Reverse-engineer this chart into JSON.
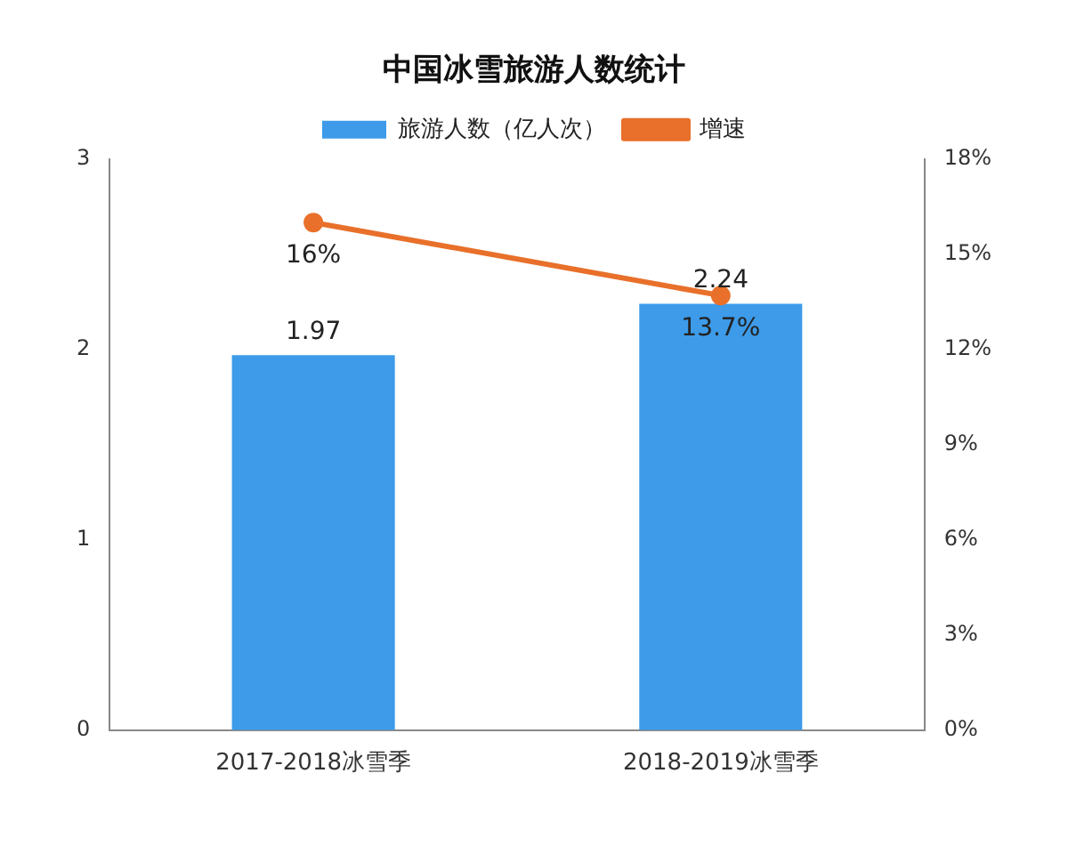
{
  "chart_data": {
    "type": "bar",
    "title": "中国冰雪旅游人数统计",
    "categories": [
      "2017-2018冰雪季",
      "2018-2019冰雪季"
    ],
    "series": [
      {
        "name": "旅游人数（亿人次）",
        "color": "#3d9be9",
        "values": [
          1.97,
          2.24
        ],
        "value_labels": [
          "1.97",
          "2.24"
        ]
      },
      {
        "name": "增速",
        "type": "line",
        "axis": "y2",
        "color": "#e8702a",
        "values": [
          16,
          13.7
        ],
        "value_labels": [
          "16%",
          "13.7%"
        ],
        "marker": "circle"
      }
    ],
    "ylim": [
      0,
      3
    ],
    "yticks": [
      0,
      1,
      2,
      3
    ],
    "y2lim": [
      0,
      18
    ],
    "y2ticks": [
      {
        "value": 0,
        "label": "0%"
      },
      {
        "value": 3,
        "label": "3%"
      },
      {
        "value": 6,
        "label": "6%"
      },
      {
        "value": 9,
        "label": "9%"
      },
      {
        "value": 12,
        "label": "12%"
      },
      {
        "value": 15,
        "label": "15%"
      },
      {
        "value": 18,
        "label": "18%"
      }
    ],
    "legend": "top",
    "grid": false
  }
}
